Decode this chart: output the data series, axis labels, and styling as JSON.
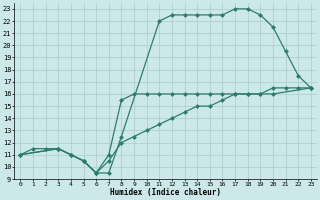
{
  "xlabel": "Humidex (Indice chaleur)",
  "background_color": "#cce8e8",
  "grid_color": "#aacccc",
  "line_color": "#2e7d6b",
  "xlim": [
    -0.5,
    23.5
  ],
  "ylim": [
    9,
    23.5
  ],
  "xticks": [
    0,
    1,
    2,
    3,
    4,
    5,
    6,
    7,
    8,
    9,
    10,
    11,
    12,
    13,
    14,
    15,
    16,
    17,
    18,
    19,
    20,
    21,
    22,
    23
  ],
  "yticks": [
    9,
    10,
    11,
    12,
    13,
    14,
    15,
    16,
    17,
    18,
    19,
    20,
    21,
    22,
    23
  ],
  "line1_x": [
    0,
    1,
    2,
    3,
    4,
    5,
    6,
    7,
    8,
    9,
    10,
    11,
    12,
    13,
    14,
    15,
    16,
    17,
    18,
    19,
    20,
    21,
    22,
    23
  ],
  "line1_y": [
    11,
    11.5,
    11.5,
    11.5,
    11,
    10.5,
    9.5,
    10.5,
    12,
    12.5,
    13,
    13.5,
    14,
    14.5,
    15,
    15,
    15.5,
    16,
    16,
    16,
    16.5,
    16.5,
    16.5,
    16.5
  ],
  "line2_x": [
    0,
    3,
    4,
    5,
    6,
    7,
    8,
    9,
    10,
    11,
    12,
    13,
    14,
    15,
    16,
    17,
    18,
    19,
    20,
    23
  ],
  "line2_y": [
    11,
    11.5,
    11,
    10.5,
    9.5,
    11,
    15.5,
    16,
    16,
    16,
    16,
    16,
    16,
    16,
    16,
    16,
    16,
    16,
    16,
    16.5
  ],
  "line3_x": [
    0,
    3,
    4,
    5,
    6,
    7,
    8,
    11,
    12,
    13,
    14,
    15,
    16,
    17,
    18,
    19,
    20,
    21,
    22,
    23
  ],
  "line3_y": [
    11,
    11.5,
    11,
    10.5,
    9.5,
    9.5,
    12.5,
    22,
    22.5,
    22.5,
    22.5,
    22.5,
    22.5,
    23,
    23,
    22.5,
    21.5,
    19.5,
    17.5,
    16.5
  ],
  "marker_size": 2.5,
  "line_width": 0.9,
  "xlabel_fontsize": 5.5,
  "tick_fontsize": 5.0
}
